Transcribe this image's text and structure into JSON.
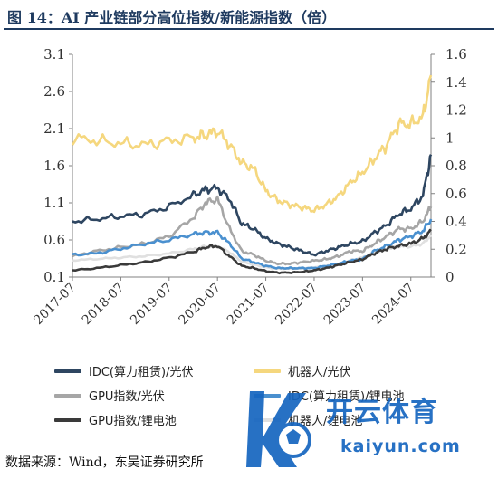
{
  "title": "图 14：AI 产业链部分高位指数/新能源指数（倍）",
  "source_note": "数据来源：Wind，东吴证券研究所",
  "watermark": {
    "brand": "开云体育",
    "url": "kaiyun.com"
  },
  "colors": {
    "axis": "#808080",
    "idc_pv": "#2e4661",
    "robot_pv": "#f5d77e",
    "gpu_pv": "#a6a6a6",
    "idc_li": "#4a90cf",
    "robot_li": "#e0e0e0",
    "gpu_li": "#3a3a3a",
    "title": "#1e3a5f",
    "watermark": "#1565c0"
  },
  "chart_data": {
    "type": "line",
    "title": "AI 产业链部分高位指数/新能源指数（倍）",
    "x_ticks": [
      "2017-07",
      "2018-07",
      "2019-07",
      "2020-07",
      "2021-07",
      "2022-07",
      "2023-07",
      "2024-07"
    ],
    "y_left": {
      "ylim": [
        0.1,
        3.1
      ],
      "ticks": [
        "0.1",
        "0.6",
        "1.1",
        "1.6",
        "2.1",
        "2.6",
        "3.1"
      ]
    },
    "y_right": {
      "ylim": [
        0,
        1.6
      ],
      "ticks": [
        "0",
        "0.2",
        "0.4",
        "0.6",
        "0.8",
        "1",
        "1.2",
        "1.4",
        "1.6"
      ]
    },
    "x": [
      "2017-07",
      "2018-01",
      "2018-07",
      "2019-01",
      "2019-07",
      "2020-01",
      "2020-04",
      "2020-07",
      "2020-10",
      "2021-01",
      "2021-04",
      "2021-07",
      "2021-10",
      "2022-01",
      "2022-04",
      "2022-07",
      "2022-10",
      "2023-01",
      "2023-04",
      "2023-07",
      "2023-10",
      "2024-01",
      "2024-04",
      "2024-07",
      "2024-10",
      "2024-12"
    ],
    "series": [
      {
        "name": "IDC(算力租赁)/光伏",
        "axis": "left",
        "values": [
          0.85,
          0.88,
          0.92,
          0.95,
          1.05,
          1.2,
          1.28,
          1.3,
          1.15,
          0.82,
          0.75,
          0.62,
          0.55,
          0.5,
          0.45,
          0.4,
          0.45,
          0.5,
          0.55,
          0.58,
          0.7,
          0.8,
          0.95,
          1.02,
          1.2,
          1.75
        ]
      },
      {
        "name": "机器人/光伏",
        "axis": "right",
        "values": [
          1.0,
          0.98,
          0.96,
          0.95,
          0.98,
          1.0,
          1.02,
          1.05,
          0.95,
          0.82,
          0.78,
          0.62,
          0.55,
          0.52,
          0.5,
          0.48,
          0.52,
          0.58,
          0.68,
          0.75,
          0.85,
          0.95,
          1.1,
          1.1,
          1.15,
          1.45
        ]
      },
      {
        "name": "GPU指数/光伏",
        "axis": "left",
        "values": [
          0.38,
          0.45,
          0.5,
          0.55,
          0.65,
          0.9,
          1.1,
          1.15,
          0.75,
          0.45,
          0.4,
          0.32,
          0.28,
          0.28,
          0.3,
          0.32,
          0.34,
          0.38,
          0.45,
          0.45,
          0.55,
          0.65,
          0.75,
          0.75,
          0.85,
          1.05
        ]
      },
      {
        "name": "IDC(算力租赁)/锂电池",
        "axis": "left",
        "values": [
          0.4,
          0.42,
          0.48,
          0.55,
          0.6,
          0.68,
          0.7,
          0.7,
          0.55,
          0.35,
          0.3,
          0.25,
          0.22,
          0.22,
          0.22,
          0.22,
          0.25,
          0.28,
          0.32,
          0.34,
          0.45,
          0.52,
          0.6,
          0.65,
          0.72,
          0.88
        ]
      },
      {
        "name": "机器人/锂电池",
        "axis": "right",
        "values": [
          0.12,
          0.13,
          0.14,
          0.15,
          0.17,
          0.2,
          0.22,
          0.22,
          0.18,
          0.11,
          0.09,
          0.07,
          0.06,
          0.06,
          0.06,
          0.07,
          0.08,
          0.09,
          0.12,
          0.14,
          0.18,
          0.2,
          0.22,
          0.22,
          0.24,
          0.3
        ]
      },
      {
        "name": "GPU指数/锂电池",
        "axis": "left",
        "values": [
          0.19,
          0.22,
          0.26,
          0.3,
          0.36,
          0.44,
          0.5,
          0.52,
          0.38,
          0.25,
          0.22,
          0.18,
          0.16,
          0.16,
          0.17,
          0.19,
          0.22,
          0.26,
          0.3,
          0.34,
          0.42,
          0.48,
          0.52,
          0.55,
          0.62,
          0.72
        ]
      }
    ],
    "legend": {
      "items": [
        "IDC(算力租赁)/光伏",
        "机器人/光伏",
        "GPU指数/光伏",
        "IDC(算力租赁)/锂电池",
        "GPU指数/锂电池",
        "机器人/锂电池"
      ],
      "placement": "bottom"
    },
    "grid": false
  }
}
